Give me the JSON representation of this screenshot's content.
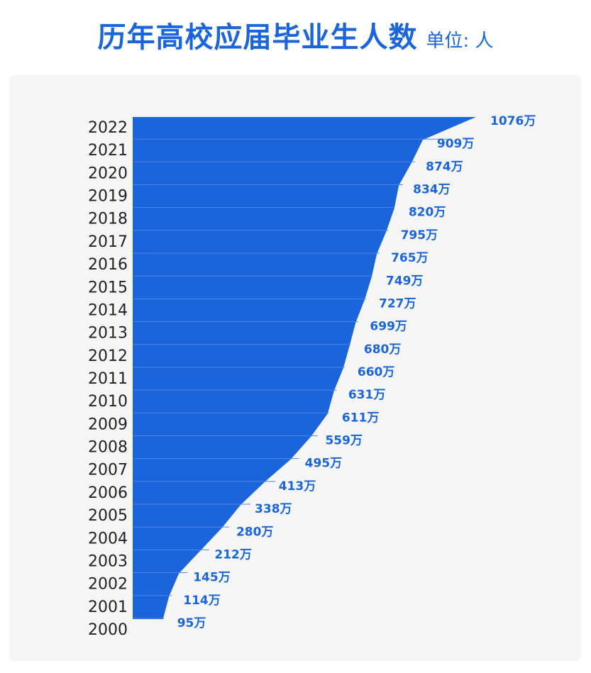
{
  "header": {
    "title": "历年高校应届毕业生人数",
    "unit": "单位: 人"
  },
  "colors": {
    "accent": "#1a64dc",
    "panel": "#f6f6f6",
    "separator": "#4d86e6"
  },
  "chart_data": {
    "type": "area",
    "orientation": "horizontal",
    "title": "历年高校应届毕业生人数",
    "subtitle": "单位: 人",
    "categories": [
      "2022",
      "2021",
      "2020",
      "2019",
      "2018",
      "2017",
      "2016",
      "2015",
      "2014",
      "2013",
      "2012",
      "2011",
      "2010",
      "2009",
      "2008",
      "2007",
      "2006",
      "2005",
      "2004",
      "2003",
      "2002",
      "2001",
      "2000"
    ],
    "values": [
      1076,
      909,
      874,
      834,
      820,
      795,
      765,
      749,
      727,
      699,
      680,
      660,
      631,
      611,
      559,
      495,
      413,
      338,
      280,
      212,
      145,
      114,
      95
    ],
    "value_labels": [
      "1076万",
      "909万",
      "874万",
      "834万",
      "820万",
      "795万",
      "765万",
      "749万",
      "727万",
      "699万",
      "680万",
      "660万",
      "631万",
      "611万",
      "559万",
      "495万",
      "413万",
      "338万",
      "280万",
      "212万",
      "145万",
      "114万",
      "95万"
    ],
    "xlim": [
      0,
      1076
    ],
    "grid": false,
    "legend": "none"
  }
}
